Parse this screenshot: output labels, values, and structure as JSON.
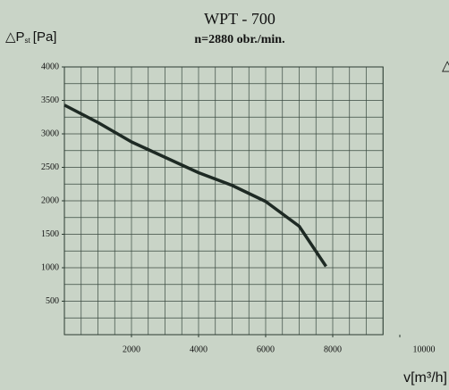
{
  "chart_data": {
    "type": "line",
    "title": "WPT - 700",
    "subtitle": "n=2880 obr./min.",
    "y_label": "△P",
    "y_label_sub": "st",
    "y_label_unit": "[Pa]",
    "x_label": "v[m³/h]",
    "side_mark": "△",
    "x": [
      0,
      1000,
      2000,
      3000,
      4000,
      5000,
      6000,
      7000,
      7800
    ],
    "series": [
      {
        "name": "WPT - 700",
        "color": "#1e2a24",
        "values": [
          3430,
          3170,
          2880,
          2650,
          2420,
          2230,
          1990,
          1620,
          1020
        ]
      }
    ],
    "xlim": [
      0,
      10000
    ],
    "ylim": [
      0,
      4000
    ],
    "xticks": [
      2000,
      4000,
      6000,
      8000,
      10000
    ],
    "yticks": [
      500,
      1000,
      1500,
      2000,
      2500,
      3000,
      3500,
      4000
    ],
    "minor_grid": {
      "x": 500,
      "y": 250
    },
    "grid": true
  }
}
